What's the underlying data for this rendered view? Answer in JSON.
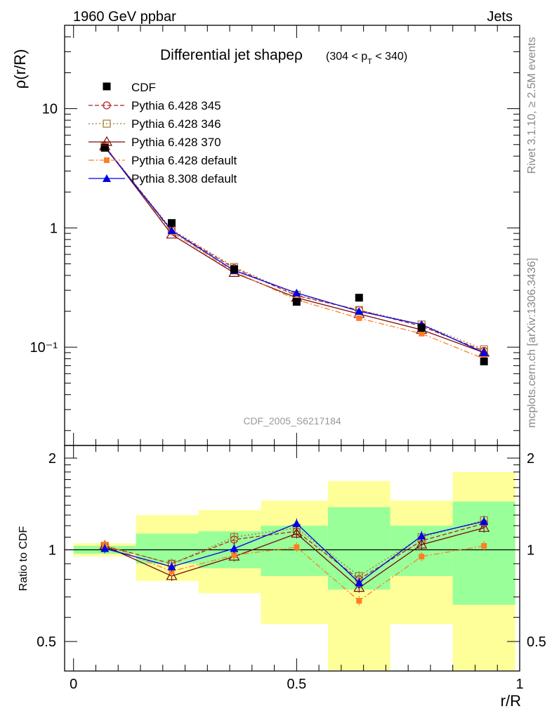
{
  "header": {
    "left": "1960 GeV ppbar",
    "right": "Jets"
  },
  "side_labels": {
    "rivet": "Rivet 3.1.10, ≥ 2.5M events",
    "mcplots": "mcplots.cern.ch [arXiv:1306.3436]"
  },
  "chart_data": {
    "type": "line",
    "title": "Differential jet shapeρ",
    "title_range": "(304 < p_T < 340)",
    "xlabel": "r/R",
    "ylabel": "ρ(r/R)",
    "ratio_ylabel": "Ratio to CDF",
    "watermark": "CDF_2005_S6217184",
    "x": [
      0.07,
      0.22,
      0.36,
      0.5,
      0.64,
      0.78,
      0.92
    ],
    "xlim": [
      -0.02,
      1.0
    ],
    "ylim_log": [
      0.015,
      50
    ],
    "ratio_ylim": [
      0.4,
      2.2
    ],
    "main_ticks": [
      "10",
      "1",
      "10⁻¹"
    ],
    "ratio_ticks": [
      "2",
      "1",
      "0.5"
    ],
    "x_ticks": [
      "0",
      "0.5",
      "1"
    ],
    "data": {
      "name": "CDF",
      "values": [
        4.7,
        1.1,
        0.45,
        0.24,
        0.26,
        0.145,
        0.076
      ]
    },
    "series": [
      {
        "name": "Pythia 6.428 345",
        "color": "#b22222",
        "dash": "6,3",
        "marker": "circle-open",
        "values": [
          4.85,
          0.95,
          0.46,
          0.27,
          0.205,
          0.15,
          0.093
        ],
        "ratio": [
          1.03,
          0.9,
          1.08,
          1.15,
          0.8,
          1.07,
          1.22
        ]
      },
      {
        "name": "Pythia 6.428 346",
        "color": "#a0782a",
        "dash": "2,3",
        "marker": "square-open",
        "values": [
          4.85,
          0.97,
          0.47,
          0.275,
          0.205,
          0.155,
          0.096
        ],
        "ratio": [
          1.03,
          0.9,
          1.1,
          1.18,
          0.82,
          1.1,
          1.25
        ]
      },
      {
        "name": "Pythia 6.428 370",
        "color": "#7a0a0a",
        "dash": "",
        "marker": "triangle-open",
        "values": [
          4.85,
          0.88,
          0.42,
          0.26,
          0.19,
          0.14,
          0.09
        ],
        "ratio": [
          1.03,
          0.82,
          0.95,
          1.13,
          0.75,
          1.04,
          1.18
        ]
      },
      {
        "name": "Pythia 6.428 default",
        "color": "#ff7f24",
        "dash": "8,3,2,3",
        "marker": "square-filled",
        "values": [
          4.9,
          0.92,
          0.43,
          0.25,
          0.175,
          0.13,
          0.08
        ],
        "ratio": [
          1.04,
          0.85,
          0.96,
          1.02,
          0.68,
          0.95,
          1.03
        ]
      },
      {
        "name": "Pythia 8.308 default",
        "color": "#0000e6",
        "dash": "",
        "marker": "triangle-filled",
        "values": [
          4.75,
          0.95,
          0.44,
          0.285,
          0.2,
          0.155,
          0.09
        ],
        "ratio": [
          1.01,
          0.88,
          1.01,
          1.22,
          0.78,
          1.11,
          1.24
        ]
      }
    ],
    "uncertainty_bands": [
      {
        "xlo": 0.0,
        "xhi": 0.14,
        "inner": [
          0.97,
          1.03
        ],
        "outer": [
          0.95,
          1.05
        ]
      },
      {
        "xlo": 0.14,
        "xhi": 0.28,
        "inner": [
          0.9,
          1.13
        ],
        "outer": [
          0.79,
          1.3
        ]
      },
      {
        "xlo": 0.28,
        "xhi": 0.42,
        "inner": [
          0.87,
          1.15
        ],
        "outer": [
          0.72,
          1.35
        ]
      },
      {
        "xlo": 0.42,
        "xhi": 0.57,
        "inner": [
          0.82,
          1.2
        ],
        "outer": [
          0.57,
          1.45
        ]
      },
      {
        "xlo": 0.57,
        "xhi": 0.71,
        "inner": [
          0.74,
          1.38
        ],
        "outer": [
          0.3,
          1.68
        ]
      },
      {
        "xlo": 0.71,
        "xhi": 0.85,
        "inner": [
          0.82,
          1.2
        ],
        "outer": [
          0.57,
          1.45
        ]
      },
      {
        "xlo": 0.85,
        "xhi": 0.99,
        "inner": [
          0.66,
          1.44
        ],
        "outer": [
          0.3,
          1.8
        ]
      }
    ]
  }
}
